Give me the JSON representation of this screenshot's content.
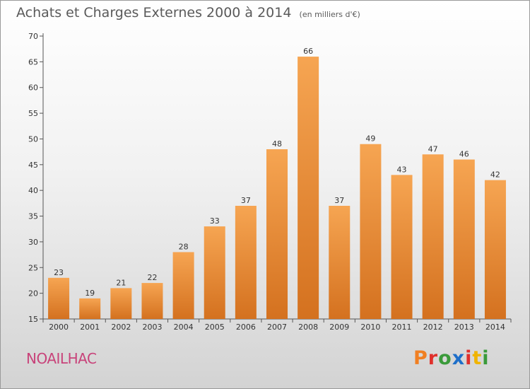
{
  "header": {
    "title": "Achats et Charges Externes 2000 à 2014",
    "unit": "(en milliers d'€)"
  },
  "footer": {
    "commune": "NOAILHAC",
    "brand": "Proxiti",
    "brand_colors": [
      "#f07f22",
      "#e0302c",
      "#3a9a3a",
      "#1e6fc9",
      "#e0302c",
      "#f0b400",
      "#3a9a3a"
    ]
  },
  "chart_data": {
    "type": "bar",
    "title": "Achats et Charges Externes 2000 à 2014",
    "subtitle": "(en milliers d'€)",
    "xlabel": "",
    "ylabel": "",
    "categories": [
      "2000",
      "2001",
      "2002",
      "2003",
      "2004",
      "2005",
      "2006",
      "2007",
      "2008",
      "2009",
      "2010",
      "2011",
      "2012",
      "2013",
      "2014"
    ],
    "values": [
      23,
      19,
      21,
      22,
      28,
      33,
      37,
      48,
      66,
      37,
      49,
      43,
      47,
      46,
      42
    ],
    "ylim": [
      15,
      70
    ],
    "yticks": [
      15,
      20,
      25,
      30,
      35,
      40,
      45,
      50,
      55,
      60,
      65,
      70
    ],
    "grid": false,
    "legend": "none",
    "bar_color_top": "#f6a552",
    "bar_color_bottom": "#d4711f"
  }
}
